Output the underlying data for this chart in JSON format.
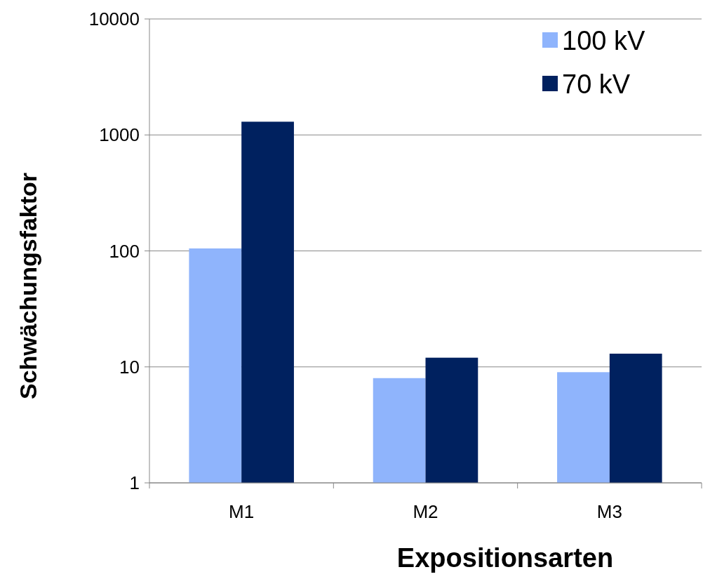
{
  "chart_data": {
    "type": "bar",
    "xlabel": "Expositionsarten",
    "ylabel": "Schwächungsfaktor",
    "categories": [
      "M1",
      "M2",
      "M3"
    ],
    "series": [
      {
        "name": "100 kV",
        "color": "#8fb4fc",
        "values": [
          105,
          8,
          9
        ]
      },
      {
        "name": "70 kV",
        "color": "#00215f",
        "values": [
          1300,
          12,
          13
        ]
      }
    ],
    "log": true,
    "ylim": [
      1,
      10000
    ],
    "yticks": [
      1,
      10,
      100,
      1000,
      10000
    ],
    "grid": "y",
    "legend": "top right"
  }
}
